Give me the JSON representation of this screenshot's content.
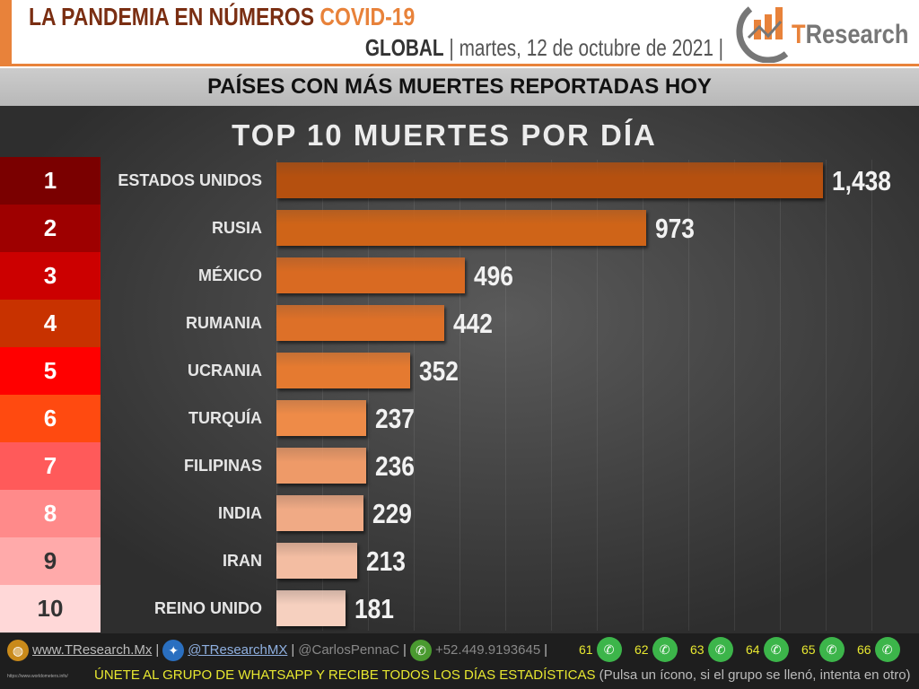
{
  "header": {
    "title": "LA PANDEMIA EN NÚMEROS",
    "title_accent": "COVID-19",
    "scope": "GLOBAL",
    "date": "| martes, 12 de octubre de 2021 |",
    "logo_t": "T",
    "logo_rest": "Research"
  },
  "band": "PAÍSES CON MÁS MUERTES REPORTADAS HOY",
  "chart_data": {
    "type": "bar",
    "orientation": "horizontal",
    "title": "TOP 10 MUERTES POR DÍA",
    "ranks": [
      "1",
      "2",
      "3",
      "4",
      "5",
      "6",
      "7",
      "8",
      "9",
      "10"
    ],
    "categories": [
      "ESTADOS UNIDOS",
      "RUSIA",
      "MÉXICO",
      "RUMANIA",
      "UCRANIA",
      "TURQUÍA",
      "FILIPINAS",
      "INDIA",
      "IRAN",
      "REINO UNIDO"
    ],
    "values": [
      1438,
      973,
      496,
      442,
      352,
      237,
      236,
      229,
      213,
      181
    ],
    "value_labels": [
      "1,438",
      "973",
      "496",
      "442",
      "352",
      "237",
      "236",
      "229",
      "213",
      "181"
    ],
    "rank_colors": [
      "#7a0000",
      "#9e0000",
      "#cc0000",
      "#c83200",
      "#ff0000",
      "#ff4a10",
      "#ff5a5a",
      "#ff8a8a",
      "#ffaaaa",
      "#ffd8d8"
    ],
    "bar_colors": [
      "#b5500f",
      "#cf6418",
      "#d96a22",
      "#dd7028",
      "#e57a30",
      "#ee8b48",
      "#ee9a68",
      "#f0aa85",
      "#f3bda2",
      "#f6d0bf"
    ],
    "grid": true
  },
  "footer": {
    "web": "www.TResearch.Mx",
    "twitter": "@TResearchMX",
    "author": "@CarlosPennaC",
    "phone": "+52.449.9193645",
    "groups": [
      "61",
      "62",
      "63",
      "64",
      "65",
      "66"
    ],
    "cta": "ÚNETE AL GRUPO DE WHATSAPP Y RECIBE TODOS LOS DÍAS ESTADÍSTICAS",
    "cta_note": "(Pulsa un ícono, si el grupo se llenó, intenta en otro)",
    "source": "https://www.worldometers.info/"
  }
}
